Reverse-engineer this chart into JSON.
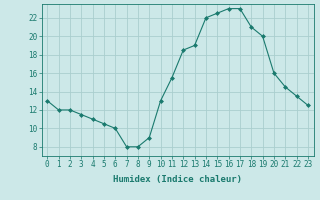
{
  "x": [
    0,
    1,
    2,
    3,
    4,
    5,
    6,
    7,
    8,
    9,
    10,
    11,
    12,
    13,
    14,
    15,
    16,
    17,
    18,
    19,
    20,
    21,
    22,
    23
  ],
  "y": [
    13,
    12,
    12,
    11.5,
    11,
    10.5,
    10,
    8,
    8,
    9,
    13,
    15.5,
    18.5,
    19,
    22,
    22.5,
    23,
    23,
    21,
    20,
    16,
    14.5,
    13.5,
    12.5
  ],
  "line_color": "#1a7a6e",
  "marker": "D",
  "marker_size": 2.0,
  "background_color": "#cce8e8",
  "grid_color": "#aacece",
  "xlabel": "Humidex (Indice chaleur)",
  "ylim": [
    7,
    23.5
  ],
  "xlim": [
    -0.5,
    23.5
  ],
  "yticks": [
    8,
    10,
    12,
    14,
    16,
    18,
    20,
    22
  ],
  "xticks": [
    0,
    1,
    2,
    3,
    4,
    5,
    6,
    7,
    8,
    9,
    10,
    11,
    12,
    13,
    14,
    15,
    16,
    17,
    18,
    19,
    20,
    21,
    22,
    23
  ],
  "xtick_labels": [
    "0",
    "1",
    "2",
    "3",
    "4",
    "5",
    "6",
    "7",
    "8",
    "9",
    "10",
    "11",
    "12",
    "13",
    "14",
    "15",
    "16",
    "17",
    "18",
    "19",
    "20",
    "21",
    "22",
    "23"
  ],
  "label_fontsize": 6.5,
  "tick_fontsize": 5.5
}
